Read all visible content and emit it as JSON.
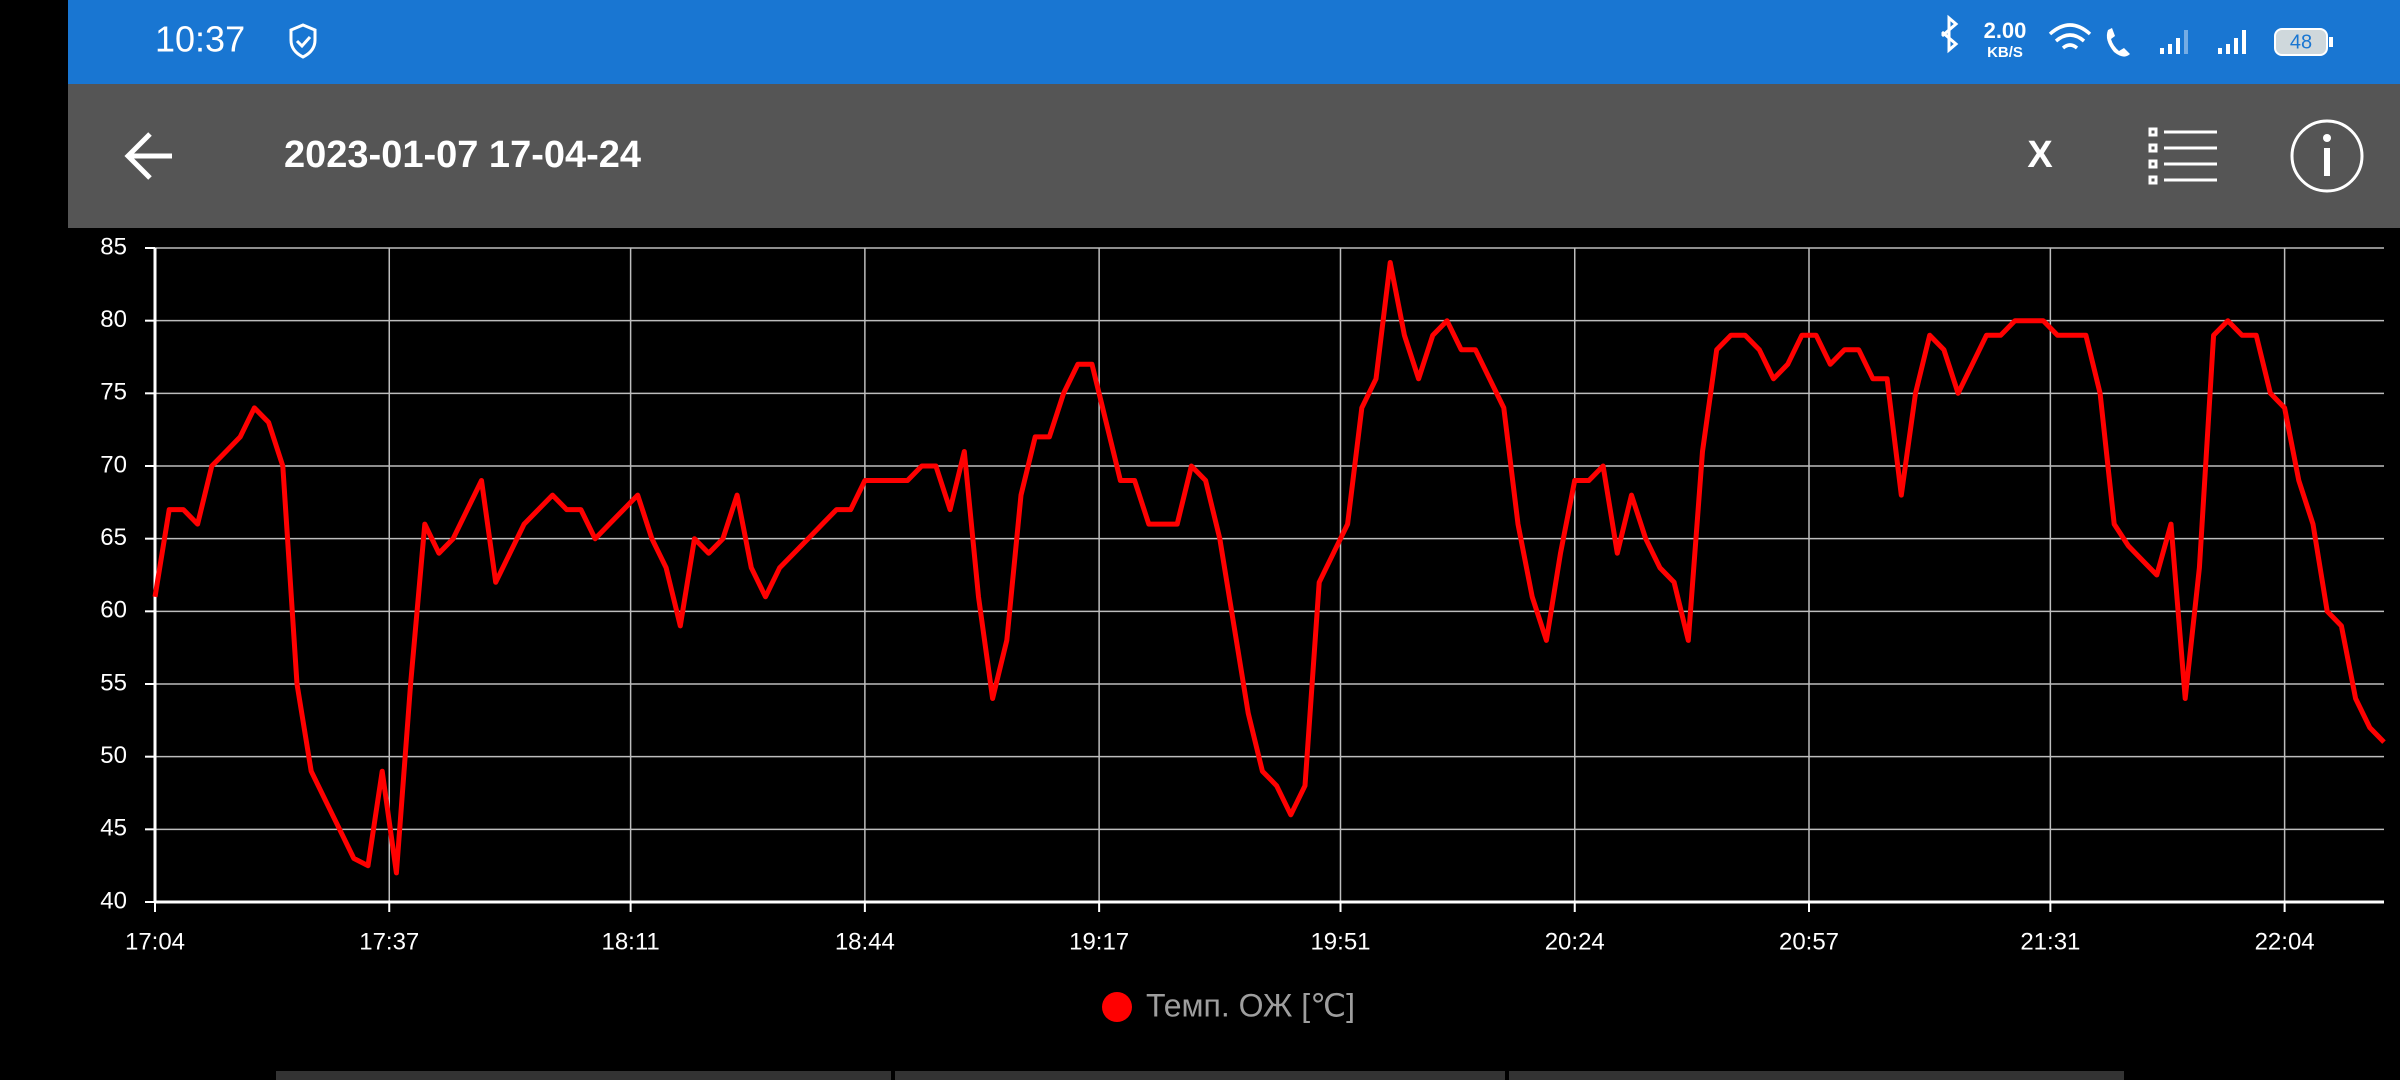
{
  "status_bar": {
    "time": "10:37",
    "net_speed": "2.00",
    "net_unit": "KB/S",
    "battery": "48"
  },
  "toolbar": {
    "title": "2023-01-07 17-04-24",
    "close": "X"
  },
  "chart_data": {
    "type": "line",
    "x": [
      "17:04",
      "17:06",
      "17:08",
      "17:10",
      "17:12",
      "17:14",
      "17:16",
      "17:18",
      "17:20",
      "17:22",
      "17:24",
      "17:26",
      "17:28",
      "17:30",
      "17:32",
      "17:34",
      "17:36",
      "17:38",
      "17:40",
      "17:42",
      "17:44",
      "17:46",
      "17:48",
      "17:50",
      "17:52",
      "17:54",
      "17:56",
      "17:58",
      "18:00",
      "18:02",
      "18:04",
      "18:06",
      "18:08",
      "18:10",
      "18:12",
      "18:14",
      "18:16",
      "18:18",
      "18:20",
      "18:22",
      "18:24",
      "18:26",
      "18:28",
      "18:30",
      "18:32",
      "18:34",
      "18:36",
      "18:38",
      "18:40",
      "18:42",
      "18:44",
      "18:46",
      "18:48",
      "18:50",
      "18:52",
      "18:54",
      "18:56",
      "18:58",
      "19:00",
      "19:02",
      "19:04",
      "19:06",
      "19:08",
      "19:10",
      "19:12",
      "19:14",
      "19:16",
      "19:18",
      "19:20",
      "19:22",
      "19:24",
      "19:26",
      "19:28",
      "19:30",
      "19:32",
      "19:34",
      "19:36",
      "19:38",
      "19:40",
      "19:42",
      "19:44",
      "19:46",
      "19:48",
      "19:50",
      "19:52",
      "19:54",
      "19:56",
      "19:58",
      "20:00",
      "20:02",
      "20:04",
      "20:06",
      "20:08",
      "20:10",
      "20:12",
      "20:14",
      "20:16",
      "20:18",
      "20:20",
      "20:22",
      "20:24",
      "20:26",
      "20:28",
      "20:30",
      "20:32",
      "20:34",
      "20:36",
      "20:38",
      "20:40",
      "20:42",
      "20:44",
      "20:46",
      "20:48",
      "20:50",
      "20:52",
      "20:54",
      "20:56",
      "20:58",
      "21:00",
      "21:02",
      "21:04",
      "21:06",
      "21:08",
      "21:10",
      "21:12",
      "21:14",
      "21:16",
      "21:18",
      "21:20",
      "21:22",
      "21:24",
      "21:26",
      "21:28",
      "21:30",
      "21:32",
      "21:34",
      "21:36",
      "21:38",
      "21:40",
      "21:42",
      "21:44",
      "21:46",
      "21:48",
      "21:50",
      "21:52",
      "21:54",
      "21:56",
      "21:58",
      "22:00",
      "22:02",
      "22:04",
      "22:06",
      "22:08",
      "22:10",
      "22:12",
      "22:14",
      "22:16",
      "22:18"
    ],
    "series": [
      {
        "name": "Темп. ОЖ [℃]",
        "color": "#ff0000",
        "values": [
          61,
          67,
          67,
          66,
          70,
          71,
          72,
          74,
          73,
          70,
          55,
          49,
          47,
          45,
          43,
          42.5,
          49,
          42,
          55,
          66,
          64,
          65,
          67,
          69,
          62,
          64,
          66,
          67,
          68,
          67,
          67,
          65,
          66,
          67,
          68,
          65,
          63,
          59,
          65,
          64,
          65,
          68,
          63,
          61,
          63,
          64,
          65,
          66,
          67,
          67,
          69,
          69,
          69,
          69,
          70,
          70,
          67,
          71,
          61,
          54,
          58,
          68,
          72,
          72,
          75,
          77,
          77,
          73,
          69,
          69,
          66,
          66,
          66,
          70,
          69,
          65,
          59,
          53,
          49,
          48,
          46,
          48,
          62,
          64,
          66,
          74,
          76,
          84,
          79,
          76,
          79,
          80,
          78,
          78,
          76,
          74,
          66,
          61,
          58,
          64,
          69,
          69,
          70,
          64,
          68,
          65,
          63,
          62,
          58,
          71,
          78,
          79,
          79,
          78,
          76,
          77,
          79,
          79,
          77,
          78,
          78,
          76,
          76,
          68,
          75,
          79,
          78,
          75,
          77,
          79,
          79,
          80,
          80,
          80,
          79,
          79,
          79,
          75,
          66,
          64.5,
          63.5,
          62.5,
          66,
          54,
          63,
          79,
          80,
          79,
          79,
          75,
          74,
          69,
          66,
          60,
          59,
          54,
          52,
          51
        ]
      }
    ],
    "xlim": [
      "17:04",
      "22:18"
    ],
    "xticks": [
      "17:04",
      "17:37",
      "18:11",
      "18:44",
      "19:17",
      "19:51",
      "20:24",
      "20:57",
      "21:31",
      "22:04"
    ],
    "ylim": [
      40,
      85
    ],
    "yticks": [
      40,
      45,
      50,
      55,
      60,
      65,
      70,
      75,
      80,
      85
    ],
    "grid": true,
    "legend": "bottom"
  }
}
